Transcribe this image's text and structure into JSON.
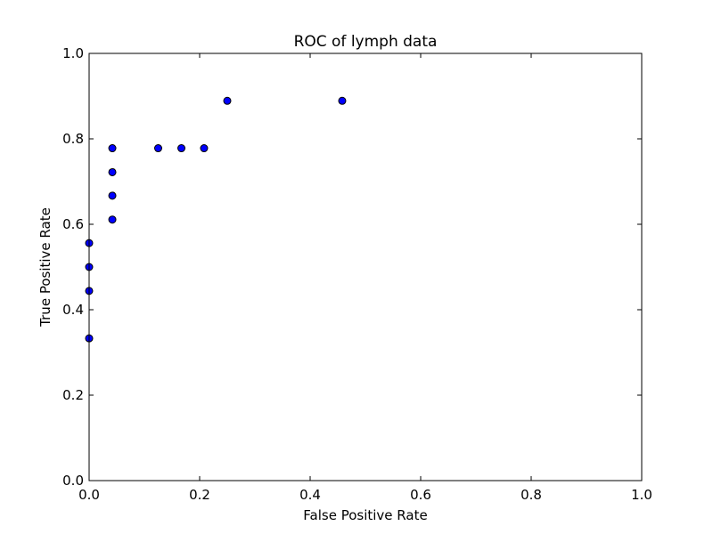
{
  "chart_data": {
    "type": "scatter",
    "title": "ROC of lymph data",
    "xlabel": "False Positive Rate",
    "ylabel": "True Positive Rate",
    "xlim": [
      0.0,
      1.0
    ],
    "ylim": [
      0.0,
      1.0
    ],
    "xticks": [
      "0.0",
      "0.2",
      "0.4",
      "0.6",
      "0.8",
      "1.0"
    ],
    "yticks": [
      "0.0",
      "0.2",
      "0.4",
      "0.6",
      "0.8",
      "1.0"
    ],
    "grid": false,
    "marker_color": "#0000ff",
    "marker_edge_color": "#000000",
    "points": [
      {
        "x": 0.0,
        "y": 0.333
      },
      {
        "x": 0.0,
        "y": 0.444
      },
      {
        "x": 0.0,
        "y": 0.5
      },
      {
        "x": 0.0,
        "y": 0.556
      },
      {
        "x": 0.042,
        "y": 0.611
      },
      {
        "x": 0.042,
        "y": 0.667
      },
      {
        "x": 0.042,
        "y": 0.722
      },
      {
        "x": 0.042,
        "y": 0.778
      },
      {
        "x": 0.125,
        "y": 0.778
      },
      {
        "x": 0.167,
        "y": 0.778
      },
      {
        "x": 0.208,
        "y": 0.778
      },
      {
        "x": 0.25,
        "y": 0.889
      },
      {
        "x": 0.458,
        "y": 0.889
      }
    ]
  }
}
